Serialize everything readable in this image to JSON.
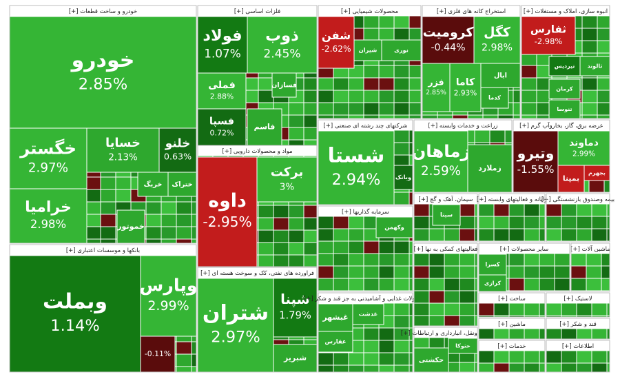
{
  "sectors": [
    {
      "title": "خودرو و ساخت قطعات [+]",
      "tiles": [
        {
          "symbol": "خودرو",
          "change": "2.85%",
          "color": "#35b535"
        },
        {
          "symbol": "خگستر",
          "change": "2.97%",
          "color": "#35b535"
        },
        {
          "symbol": "خراميا",
          "change": "2.98%",
          "color": "#35b535"
        },
        {
          "symbol": "خسايا",
          "change": "2.13%",
          "color": "#2ea82e"
        },
        {
          "symbol": "خلنو",
          "change": "0.63%",
          "color": "#136b13"
        },
        {
          "symbol": "خريگ",
          "color": "#2ea82e"
        },
        {
          "symbol": "ختراک",
          "color": "#2ea82e"
        },
        {
          "symbol": "خموتور",
          "color": "#2ea82e"
        }
      ]
    },
    {
      "title": "بانکها و موسسات اعتباری [+]",
      "tiles": [
        {
          "symbol": "وبملت",
          "change": "1.14%",
          "color": "#137a13"
        },
        {
          "symbol": "وپارس",
          "change": "2.99%",
          "color": "#35b535"
        },
        {
          "change": "-0.11%",
          "color": "#5a0c0c"
        }
      ]
    },
    {
      "title": "فلزات اساسی [+]",
      "tiles": [
        {
          "symbol": "فولاد",
          "change": "1.07%",
          "color": "#137a13"
        },
        {
          "symbol": "ذوب",
          "change": "2.45%",
          "color": "#35b535"
        },
        {
          "symbol": "فملی",
          "change": "2.88%",
          "color": "#35b535"
        },
        {
          "symbol": "فسپا",
          "change": "0.72%",
          "color": "#136b13"
        },
        {
          "symbol": "فسازان",
          "color": "#2ea82e"
        },
        {
          "symbol": "فاسم",
          "color": "#2ea82e"
        }
      ]
    },
    {
      "title": "مواد و محصولات دارویی [+]",
      "tiles": [
        {
          "symbol": "داوه",
          "change": "-2.95%",
          "color": "#c21c1c"
        },
        {
          "symbol": "برکت",
          "change": "3%",
          "color": "#35b535"
        }
      ]
    },
    {
      "title": "فراورده های نفتی، کک و سوخت هسته ای [+]",
      "tiles": [
        {
          "symbol": "شتران",
          "change": "2.97%",
          "color": "#35b535"
        },
        {
          "symbol": "شپنا",
          "change": "1.79%",
          "color": "#137a13"
        },
        {
          "symbol": "شبریز",
          "color": "#2ea82e"
        }
      ]
    },
    {
      "title": "محصولات شیمیایی [+]",
      "tiles": [
        {
          "symbol": "شفن",
          "change": "-2.62%",
          "color": "#c21c1c"
        },
        {
          "symbol": "شیران",
          "color": "#2ea82e"
        },
        {
          "symbol": "نوری",
          "color": "#2ea82e"
        }
      ]
    },
    {
      "title": "استخراج کانه های فلزی [+]",
      "tiles": [
        {
          "symbol": "کرومیت",
          "change": "-0.44%",
          "color": "#5a0c0c"
        },
        {
          "symbol": "کگل",
          "change": "2.98%",
          "color": "#35b535"
        },
        {
          "symbol": "فزر",
          "change": "2.85%",
          "color": "#35b535"
        },
        {
          "symbol": "کاما",
          "change": "2.93%",
          "color": "#35b535"
        },
        {
          "symbol": "ایال",
          "color": "#2ea82e"
        },
        {
          "symbol": "کدما",
          "color": "#2ea82e"
        }
      ]
    },
    {
      "title": "انبوه سازی، املاک و مستغلات [+]",
      "tiles": [
        {
          "symbol": "ثفارس",
          "change": "-2.98%",
          "color": "#c21c1c"
        },
        {
          "symbol": "تیردیس",
          "color": "#137a13"
        },
        {
          "symbol": "ثالوند",
          "color": "#2ea82e"
        },
        {
          "symbol": "کرمان",
          "color": "#2ea82e"
        },
        {
          "symbol": "تنوسا",
          "color": "#2ea82e"
        }
      ]
    },
    {
      "title": "شرکتهای چند رشته ای صنعتی [+]",
      "tiles": [
        {
          "symbol": "شستا",
          "change": "2.94%",
          "color": "#35b535"
        },
        {
          "symbol": "وبانک",
          "color": "#136b13"
        }
      ]
    },
    {
      "title": "زراعت و خدمات وابسته [+]",
      "tiles": [
        {
          "symbol": "زماهان",
          "change": "2.59%",
          "color": "#35b535"
        },
        {
          "symbol": "زملارد",
          "color": "#2ea82e"
        }
      ]
    },
    {
      "title": "عرضه برق، گاز، بخاروآب گرم [+]",
      "tiles": [
        {
          "symbol": "وتیرو",
          "change": "-1.55%",
          "color": "#5a0c0c"
        },
        {
          "symbol": "دماوند",
          "change": "2.99%",
          "color": "#35b535"
        },
        {
          "symbol": "بجهرم",
          "color": "#c21c1c"
        },
        {
          "symbol": "بمپنا",
          "color": "#c21c1c"
        }
      ]
    },
    {
      "title": "سرمایه گذاریها [+]",
      "tiles": [
        {
          "symbol": "وکهمن",
          "color": "#2ea82e"
        }
      ]
    },
    {
      "title": "محصولات غذایی و آشامیدنی به جز قند و شکر [+]",
      "tiles": [
        {
          "symbol": "غبشهر",
          "color": "#2ea82e"
        },
        {
          "symbol": "عقارس",
          "color": "#2ea82e"
        },
        {
          "symbol": "غدشت",
          "color": "#2ea82e"
        }
      ]
    },
    {
      "title": "سیمان، آهک و گچ [+]",
      "tiles": [
        {
          "symbol": "سیتا",
          "color": "#2ea82e"
        }
      ]
    },
    {
      "title": "فعالیتهای کمکی به نها [+]",
      "tiles": []
    },
    {
      "title": "حمل ونقل، انبارداری و ارتباطات [+]",
      "tiles": [
        {
          "symbol": "حکشتی",
          "color": "#2ea82e"
        },
        {
          "symbol": "حتوکا",
          "color": "#2ea82e"
        }
      ]
    },
    {
      "title": "رایانه و فعالیتهای وابسته [+]",
      "tiles": []
    },
    {
      "title": "بیمه وصندوق بازنشستگی [+]",
      "tiles": []
    },
    {
      "title": "سایر محصولات [+]",
      "tiles": [
        {
          "symbol": "کسرا",
          "color": "#2ea82e"
        },
        {
          "symbol": "کرازی",
          "color": "#2ea82e"
        }
      ]
    },
    {
      "title": "ماشین آلات [+]",
      "tiles": []
    },
    {
      "title": "ساخت [+]",
      "tiles": []
    },
    {
      "title": "لاستیک [+]",
      "tiles": []
    },
    {
      "title": "ماشین [+]",
      "tiles": []
    },
    {
      "title": "قند و شکر [+]",
      "tiles": []
    },
    {
      "title": "خدمات [+]",
      "tiles": []
    },
    {
      "title": "اطلاعات [+]",
      "tiles": []
    }
  ]
}
